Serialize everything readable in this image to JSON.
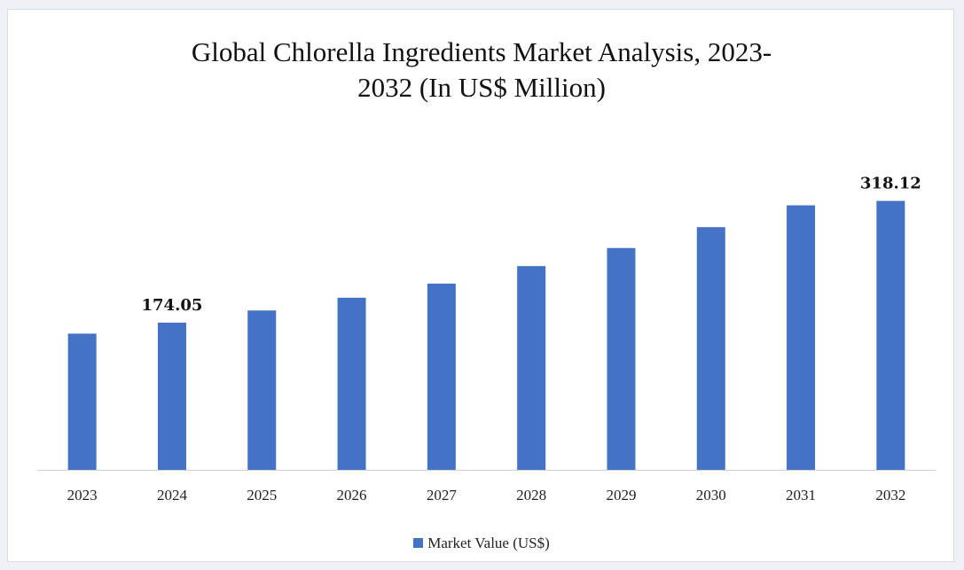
{
  "page": {
    "background": "#eef1f6",
    "card_background": "#ffffff"
  },
  "chart_data": {
    "type": "bar",
    "title_lines": [
      "Global Chlorella Ingredients Market Analysis, 2023-",
      "2032 (In US$ Million)"
    ],
    "categories": [
      "2023",
      "2024",
      "2025",
      "2026",
      "2027",
      "2028",
      "2029",
      "2030",
      "2031",
      "2032"
    ],
    "series": [
      {
        "name": "Market Value (US$)",
        "color": "#4472c4",
        "values": [
          161.1,
          174.05,
          188.5,
          203.6,
          220.3,
          241.0,
          262.4,
          287.1,
          312.9,
          318.12
        ]
      }
    ],
    "data_labels": {
      "2024": "174.05",
      "2032": "318.12"
    },
    "xlabel": "",
    "ylabel": "",
    "ylim": [
      0,
      345
    ],
    "grid": false,
    "legend_position": "bottom"
  }
}
